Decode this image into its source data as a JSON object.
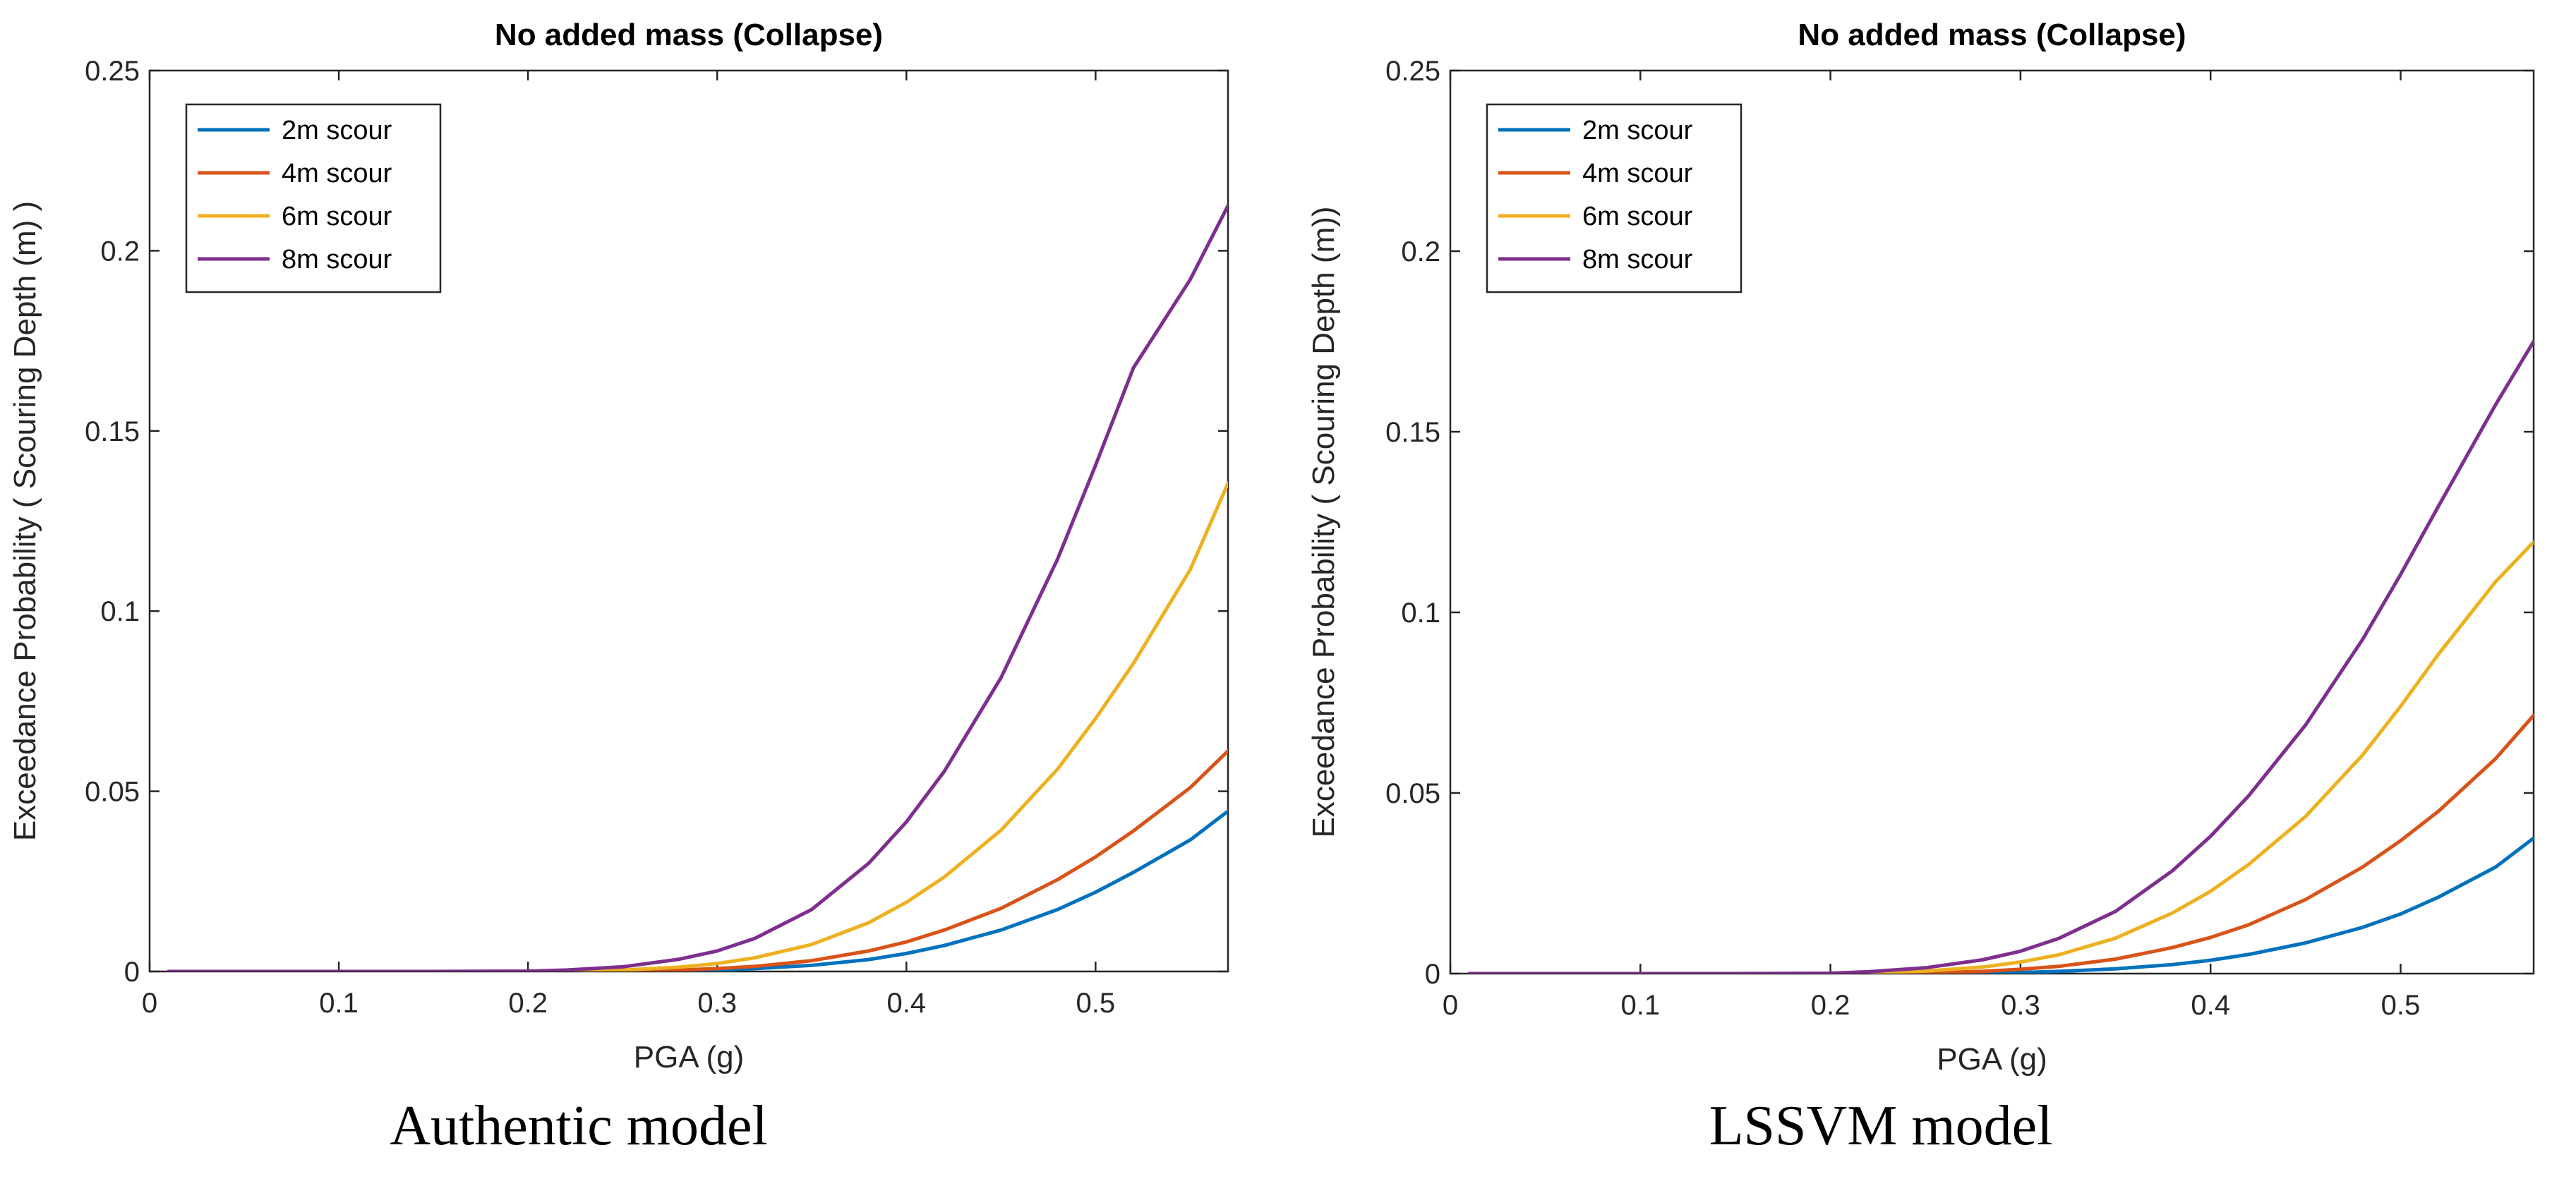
{
  "chart_data": [
    {
      "type": "line",
      "title": "No added mass (Collapse)",
      "caption": "Authentic model",
      "xlabel": "PGA (g)",
      "ylabel": "Exceedance Probability ( Scouring Depth (m) )",
      "xlim": [
        0,
        0.57
      ],
      "ylim": [
        0,
        0.25
      ],
      "xticks": [
        0,
        0.1,
        0.2,
        0.3,
        0.4,
        0.5
      ],
      "xtick_labels": [
        "0",
        "0.1",
        "0.2",
        "0.3",
        "0.4",
        "0.5"
      ],
      "yticks": [
        0,
        0.05,
        0.1,
        0.15,
        0.2,
        0.25
      ],
      "ytick_labels": [
        "0",
        "0.05",
        "0.1",
        "0.15",
        "0.2",
        "0.25"
      ],
      "grid": false,
      "legend_position": "top-left",
      "x": [
        0.01,
        0.05,
        0.1,
        0.15,
        0.2,
        0.22,
        0.25,
        0.28,
        0.3,
        0.32,
        0.35,
        0.38,
        0.4,
        0.42,
        0.45,
        0.48,
        0.5,
        0.52,
        0.55,
        0.57
      ],
      "series": [
        {
          "name": "2m scour",
          "color": "#0072BD",
          "values": [
            0,
            0,
            0,
            0,
            0,
            0,
            0,
            0.0002,
            0.0004,
            0.0008,
            0.0017,
            0.0033,
            0.005,
            0.0072,
            0.0115,
            0.0172,
            0.022,
            0.0275,
            0.0365,
            0.0445
          ]
        },
        {
          "name": "4m scour",
          "color": "#D95319",
          "values": [
            0,
            0,
            0,
            0,
            0,
            0,
            0.0001,
            0.0004,
            0.0008,
            0.0014,
            0.003,
            0.0057,
            0.0082,
            0.0115,
            0.0175,
            0.0255,
            0.0318,
            0.039,
            0.051,
            0.0612
          ]
        },
        {
          "name": "6m scour",
          "color": "#EDB120",
          "values": [
            0,
            0,
            0,
            0,
            0,
            0.0001,
            0.0004,
            0.0012,
            0.0022,
            0.0038,
            0.0075,
            0.0135,
            0.0192,
            0.0262,
            0.0392,
            0.0562,
            0.0702,
            0.0855,
            0.1115,
            0.1355
          ]
        },
        {
          "name": "8m scour",
          "color": "#7E2F8E",
          "values": [
            0,
            0,
            0,
            0,
            0.0001,
            0.0004,
            0.0013,
            0.0034,
            0.0057,
            0.0092,
            0.0172,
            0.03,
            0.0415,
            0.0555,
            0.0815,
            0.1145,
            0.1405,
            0.1675,
            0.192,
            0.2125
          ]
        }
      ]
    },
    {
      "type": "line",
      "title": "No added mass (Collapse)",
      "caption": "LSSVM model",
      "xlabel": "PGA (g)",
      "ylabel": "Exceedance Probability ( Scouring Depth (m))",
      "xlim": [
        0,
        0.57
      ],
      "ylim": [
        0,
        0.25
      ],
      "xticks": [
        0,
        0.1,
        0.2,
        0.3,
        0.4,
        0.5
      ],
      "xtick_labels": [
        "0",
        "0.1",
        "0.2",
        "0.3",
        "0.4",
        "0.5"
      ],
      "yticks": [
        0,
        0.05,
        0.1,
        0.15,
        0.2,
        0.25
      ],
      "ytick_labels": [
        "0",
        "0.05",
        "0.1",
        "0.15",
        "0.2",
        "0.25"
      ],
      "grid": false,
      "legend_position": "top-left",
      "x": [
        0.01,
        0.05,
        0.1,
        0.15,
        0.2,
        0.22,
        0.25,
        0.28,
        0.3,
        0.32,
        0.35,
        0.38,
        0.4,
        0.42,
        0.45,
        0.48,
        0.5,
        0.52,
        0.55,
        0.57
      ],
      "series": [
        {
          "name": "2m scour",
          "color": "#0072BD",
          "values": [
            0,
            0,
            0,
            0,
            0,
            0,
            0,
            0.0001,
            0.0003,
            0.0006,
            0.0013,
            0.0025,
            0.0037,
            0.0053,
            0.0085,
            0.0128,
            0.0165,
            0.0212,
            0.0295,
            0.0375
          ]
        },
        {
          "name": "4m scour",
          "color": "#D95319",
          "values": [
            0,
            0,
            0,
            0,
            0,
            0,
            0.0002,
            0.0006,
            0.0012,
            0.002,
            0.004,
            0.0072,
            0.01,
            0.0135,
            0.0205,
            0.0295,
            0.0368,
            0.045,
            0.0595,
            0.0715
          ]
        },
        {
          "name": "6m scour",
          "color": "#EDB120",
          "values": [
            0,
            0,
            0,
            0,
            0,
            0.0002,
            0.0007,
            0.0018,
            0.0032,
            0.0052,
            0.0098,
            0.0168,
            0.0228,
            0.0302,
            0.0435,
            0.0605,
            0.074,
            0.0885,
            0.1085,
            0.1195
          ]
        },
        {
          "name": "8m scour",
          "color": "#7E2F8E",
          "values": [
            0,
            0,
            0,
            0,
            0.0001,
            0.0005,
            0.0016,
            0.0038,
            0.0062,
            0.0097,
            0.0172,
            0.0285,
            0.038,
            0.0492,
            0.0688,
            0.0925,
            0.1105,
            0.1295,
            0.1575,
            0.175
          ]
        }
      ]
    }
  ]
}
